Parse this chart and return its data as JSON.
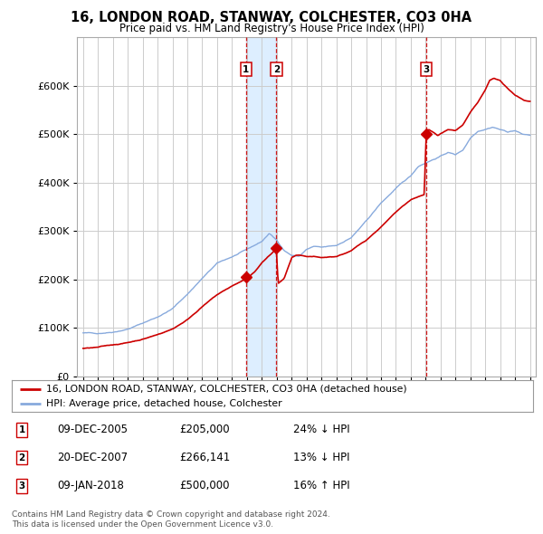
{
  "title": "16, LONDON ROAD, STANWAY, COLCHESTER, CO3 0HA",
  "subtitle": "Price paid vs. HM Land Registry's House Price Index (HPI)",
  "transactions": [
    {
      "num": 1,
      "date_label": "09-DEC-2005",
      "price": 205000,
      "pct": "24%",
      "dir": "↓",
      "x_year": 2005.94
    },
    {
      "num": 2,
      "date_label": "20-DEC-2007",
      "price": 266141,
      "pct": "13%",
      "dir": "↓",
      "x_year": 2007.97
    },
    {
      "num": 3,
      "date_label": "09-JAN-2018",
      "price": 500000,
      "pct": "16%",
      "dir": "↑",
      "x_year": 2018.03
    }
  ],
  "legend_line1": "16, LONDON ROAD, STANWAY, COLCHESTER, CO3 0HA (detached house)",
  "legend_line2": "HPI: Average price, detached house, Colchester",
  "footer1": "Contains HM Land Registry data © Crown copyright and database right 2024.",
  "footer2": "This data is licensed under the Open Government Licence v3.0.",
  "price_color": "#cc0000",
  "hpi_color": "#88aadd",
  "vline_color": "#cc0000",
  "shade_color": "#ddeeff",
  "background_color": "#ffffff",
  "grid_color": "#cccccc",
  "ylim": [
    0,
    700000
  ],
  "yticks": [
    0,
    100000,
    200000,
    300000,
    400000,
    500000,
    600000
  ],
  "xlim_start": 1994.6,
  "xlim_end": 2025.4
}
